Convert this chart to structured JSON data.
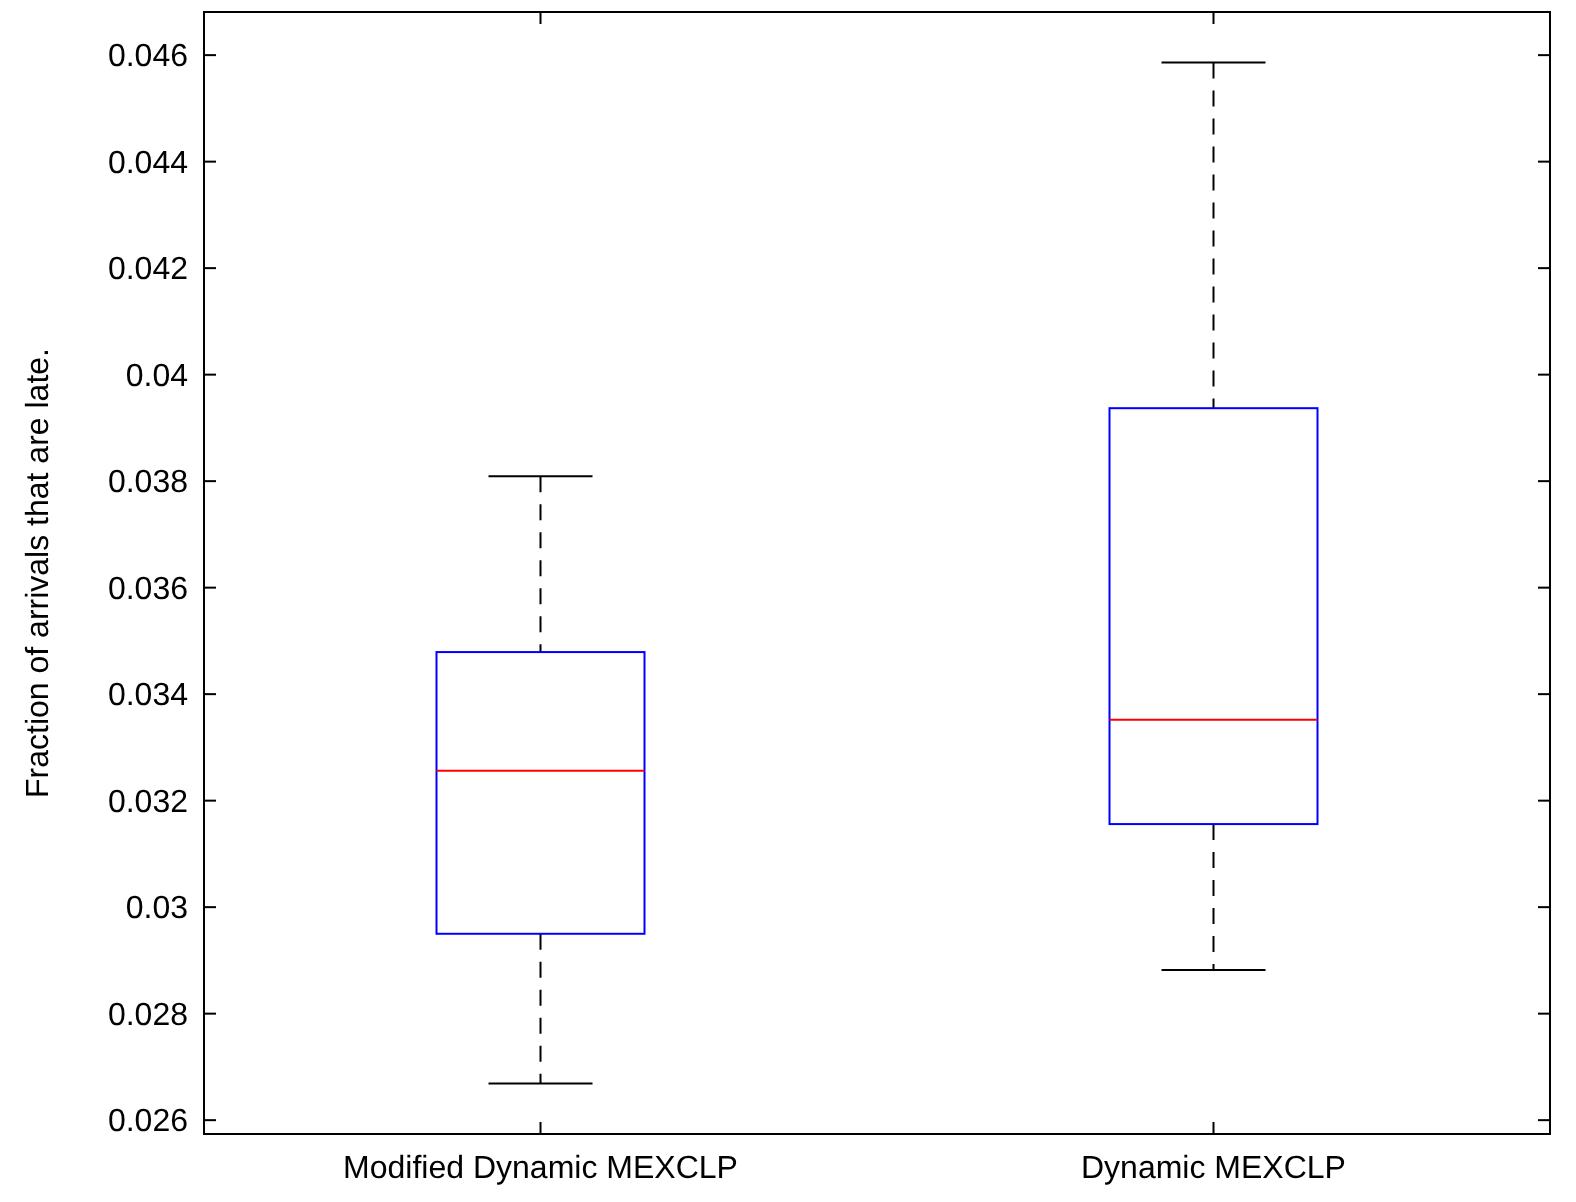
{
  "chart_data": {
    "type": "box",
    "ylabel": "Fraction of arrivals that are late.",
    "categories": [
      "Modified Dynamic MEXCLP",
      "Dynamic MEXCLP"
    ],
    "boxes": [
      {
        "low": 0.02669,
        "q1": 0.0295,
        "median": 0.03256,
        "q3": 0.03479,
        "high": 0.03809
      },
      {
        "low": 0.02882,
        "q1": 0.03156,
        "median": 0.03352,
        "q3": 0.03937,
        "high": 0.04586
      }
    ],
    "color": "#0000ff",
    "ylim": [
      0.02574,
      0.04681
    ],
    "yticks": [
      0.026,
      0.028,
      0.03,
      0.032,
      0.034,
      0.036,
      0.038,
      0.04,
      0.042,
      0.044,
      0.046
    ],
    "grid": false
  }
}
